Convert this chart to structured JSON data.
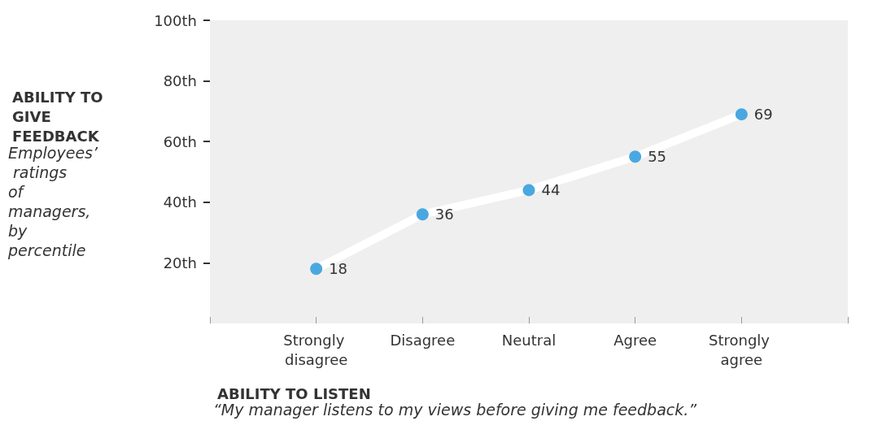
{
  "chart_data": {
    "type": "line",
    "ylabel": "ABILITY TO GIVE FEEDBACK",
    "xlabel": "ABILITY TO LISTEN",
    "annotations": [
      "Employees’ ratings of managers, by percentile",
      "“My manager listens to my views before giving me feedback.”"
    ],
    "categories": [
      "Strongly disagree",
      "Disagree",
      "Neutral",
      "Agree",
      "Strongly agree"
    ],
    "series": [
      {
        "color": "#4aa8e0",
        "values": [
          18,
          36,
          44,
          55,
          69
        ]
      }
    ],
    "ylim": [
      0,
      100
    ],
    "yticks": [
      {
        "value": 0,
        "label": null
      },
      {
        "value": 20,
        "label": "20th"
      },
      {
        "value": 40,
        "label": "40th"
      },
      {
        "value": 60,
        "label": "60th"
      },
      {
        "value": 80,
        "label": "80th"
      },
      {
        "value": 100,
        "label": "100th"
      }
    ],
    "data_labels": true,
    "grid": false,
    "marker": "circle",
    "line_style": "solid"
  }
}
